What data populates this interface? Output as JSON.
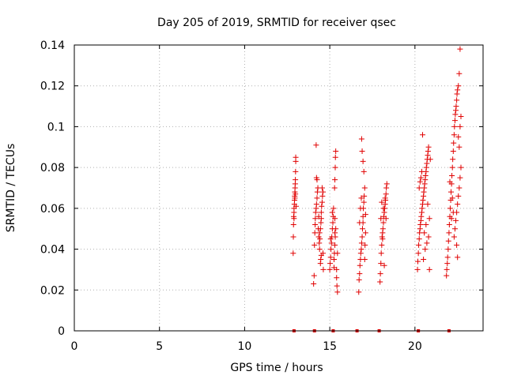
{
  "colors": {
    "data": "#e00000",
    "axis": "#000000",
    "grid": "#b0b0b0",
    "background": "#ffffff"
  },
  "chart_data": {
    "type": "scatter",
    "title": "Day 205 of 2019, SRMTID for receiver qsec",
    "xlabel": "GPS time / hours",
    "ylabel": "SRMTID / TECUs",
    "xlim": [
      0,
      24
    ],
    "ylim": [
      0,
      0.14
    ],
    "xticks": [
      0,
      5,
      10,
      15,
      20
    ],
    "xtick_labels": [
      "0",
      "5",
      "10",
      "15",
      "20"
    ],
    "yticks": [
      0,
      0.02,
      0.04,
      0.06,
      0.08,
      0.1,
      0.12,
      0.14
    ],
    "ytick_labels": [
      "0",
      "0.02",
      "0.04",
      "0.06",
      "0.08",
      "0.1",
      "0.12",
      "0.14"
    ],
    "grid": true,
    "marker": "plus",
    "series": [
      {
        "name": "SRMTID",
        "points": [
          [
            12.85,
            0.038
          ],
          [
            12.86,
            0.046
          ],
          [
            12.87,
            0.052
          ],
          [
            12.88,
            0.056
          ],
          [
            12.9,
            0.058
          ],
          [
            12.9,
            0.06
          ],
          [
            12.92,
            0.062
          ],
          [
            12.93,
            0.064
          ],
          [
            12.94,
            0.066
          ],
          [
            12.95,
            0.068
          ],
          [
            12.96,
            0.07
          ],
          [
            12.97,
            0.072
          ],
          [
            12.98,
            0.074
          ],
          [
            12.99,
            0.078
          ],
          [
            13.0,
            0.083
          ],
          [
            13.0,
            0.085
          ],
          [
            12.95,
            0.065
          ],
          [
            13.02,
            0.061
          ],
          [
            12.98,
            0.067
          ],
          [
            12.9,
            0.055
          ],
          [
            14.05,
            0.023
          ],
          [
            14.08,
            0.027
          ],
          [
            14.1,
            0.042
          ],
          [
            14.12,
            0.048
          ],
          [
            14.14,
            0.052
          ],
          [
            14.15,
            0.055
          ],
          [
            14.17,
            0.058
          ],
          [
            14.2,
            0.06
          ],
          [
            14.22,
            0.062
          ],
          [
            14.25,
            0.065
          ],
          [
            14.27,
            0.068
          ],
          [
            14.3,
            0.07
          ],
          [
            14.25,
            0.074
          ],
          [
            14.22,
            0.075
          ],
          [
            14.2,
            0.091
          ],
          [
            14.32,
            0.05
          ],
          [
            14.35,
            0.046
          ],
          [
            14.38,
            0.043
          ],
          [
            14.4,
            0.04
          ],
          [
            14.42,
            0.045
          ],
          [
            14.45,
            0.05
          ],
          [
            14.48,
            0.053
          ],
          [
            14.5,
            0.055
          ],
          [
            14.5,
            0.058
          ],
          [
            14.52,
            0.061
          ],
          [
            14.55,
            0.063
          ],
          [
            14.57,
            0.066
          ],
          [
            14.6,
            0.068
          ],
          [
            14.55,
            0.07
          ],
          [
            14.5,
            0.037
          ],
          [
            14.47,
            0.035
          ],
          [
            14.45,
            0.033
          ],
          [
            14.6,
            0.038
          ],
          [
            14.62,
            0.03
          ],
          [
            14.4,
            0.048
          ],
          [
            14.35,
            0.056
          ],
          [
            15.0,
            0.03
          ],
          [
            15.02,
            0.033
          ],
          [
            15.05,
            0.036
          ],
          [
            15.07,
            0.04
          ],
          [
            15.1,
            0.043
          ],
          [
            15.12,
            0.046
          ],
          [
            15.15,
            0.05
          ],
          [
            15.18,
            0.053
          ],
          [
            15.2,
            0.056
          ],
          [
            15.15,
            0.058
          ],
          [
            15.25,
            0.035
          ],
          [
            15.27,
            0.038
          ],
          [
            15.3,
            0.042
          ],
          [
            15.32,
            0.046
          ],
          [
            15.35,
            0.05
          ],
          [
            15.3,
            0.055
          ],
          [
            15.28,
            0.07
          ],
          [
            15.3,
            0.074
          ],
          [
            15.32,
            0.08
          ],
          [
            15.33,
            0.085
          ],
          [
            15.35,
            0.088
          ],
          [
            15.25,
            0.031
          ],
          [
            15.4,
            0.026
          ],
          [
            15.42,
            0.022
          ],
          [
            15.45,
            0.019
          ],
          [
            15.4,
            0.03
          ],
          [
            15.45,
            0.038
          ],
          [
            15.22,
            0.06
          ],
          [
            15.05,
            0.045
          ],
          [
            15.3,
            0.048
          ],
          [
            16.7,
            0.019
          ],
          [
            16.72,
            0.025
          ],
          [
            16.75,
            0.028
          ],
          [
            16.77,
            0.032
          ],
          [
            16.8,
            0.035
          ],
          [
            16.82,
            0.038
          ],
          [
            16.85,
            0.04
          ],
          [
            16.87,
            0.043
          ],
          [
            16.9,
            0.046
          ],
          [
            16.92,
            0.05
          ],
          [
            16.95,
            0.053
          ],
          [
            16.95,
            0.056
          ],
          [
            16.97,
            0.06
          ],
          [
            17.0,
            0.063
          ],
          [
            17.02,
            0.066
          ],
          [
            17.05,
            0.07
          ],
          [
            17.0,
            0.078
          ],
          [
            16.95,
            0.083
          ],
          [
            16.9,
            0.088
          ],
          [
            16.87,
            0.094
          ],
          [
            17.05,
            0.035
          ],
          [
            17.07,
            0.042
          ],
          [
            17.1,
            0.048
          ],
          [
            16.8,
            0.06
          ],
          [
            16.85,
            0.065
          ],
          [
            17.1,
            0.057
          ],
          [
            16.75,
            0.053
          ],
          [
            17.95,
            0.024
          ],
          [
            17.97,
            0.028
          ],
          [
            18.0,
            0.033
          ],
          [
            18.02,
            0.038
          ],
          [
            18.05,
            0.042
          ],
          [
            18.07,
            0.046
          ],
          [
            18.1,
            0.048
          ],
          [
            18.12,
            0.05
          ],
          [
            18.15,
            0.053
          ],
          [
            18.17,
            0.056
          ],
          [
            18.2,
            0.058
          ],
          [
            18.22,
            0.06
          ],
          [
            18.25,
            0.062
          ],
          [
            18.27,
            0.064
          ],
          [
            18.3,
            0.067
          ],
          [
            18.32,
            0.07
          ],
          [
            18.35,
            0.072
          ],
          [
            18.1,
            0.045
          ],
          [
            18.15,
            0.06
          ],
          [
            18.2,
            0.032
          ],
          [
            18.25,
            0.065
          ],
          [
            18.3,
            0.055
          ],
          [
            18.05,
            0.063
          ],
          [
            18.0,
            0.055
          ],
          [
            20.15,
            0.03
          ],
          [
            20.17,
            0.034
          ],
          [
            20.2,
            0.038
          ],
          [
            20.22,
            0.042
          ],
          [
            20.25,
            0.045
          ],
          [
            20.27,
            0.048
          ],
          [
            20.3,
            0.05
          ],
          [
            20.32,
            0.052
          ],
          [
            20.35,
            0.054
          ],
          [
            20.37,
            0.056
          ],
          [
            20.4,
            0.058
          ],
          [
            20.42,
            0.06
          ],
          [
            20.45,
            0.062
          ],
          [
            20.47,
            0.064
          ],
          [
            20.5,
            0.066
          ],
          [
            20.52,
            0.068
          ],
          [
            20.55,
            0.07
          ],
          [
            20.57,
            0.072
          ],
          [
            20.6,
            0.074
          ],
          [
            20.62,
            0.076
          ],
          [
            20.65,
            0.078
          ],
          [
            20.67,
            0.08
          ],
          [
            20.7,
            0.082
          ],
          [
            20.72,
            0.084
          ],
          [
            20.75,
            0.086
          ],
          [
            20.77,
            0.088
          ],
          [
            20.8,
            0.09
          ],
          [
            20.45,
            0.096
          ],
          [
            20.4,
            0.078
          ],
          [
            20.35,
            0.075
          ],
          [
            20.3,
            0.073
          ],
          [
            20.25,
            0.07
          ],
          [
            20.5,
            0.035
          ],
          [
            20.6,
            0.04
          ],
          [
            20.7,
            0.043
          ],
          [
            20.8,
            0.046
          ],
          [
            20.85,
            0.03
          ],
          [
            20.9,
            0.084
          ],
          [
            20.85,
            0.055
          ],
          [
            20.75,
            0.062
          ],
          [
            20.55,
            0.048
          ],
          [
            20.65,
            0.052
          ],
          [
            21.85,
            0.027
          ],
          [
            21.87,
            0.03
          ],
          [
            21.9,
            0.033
          ],
          [
            21.92,
            0.036
          ],
          [
            21.95,
            0.04
          ],
          [
            21.97,
            0.044
          ],
          [
            22.0,
            0.048
          ],
          [
            22.02,
            0.052
          ],
          [
            22.05,
            0.056
          ],
          [
            22.07,
            0.06
          ],
          [
            22.1,
            0.064
          ],
          [
            22.12,
            0.068
          ],
          [
            22.15,
            0.072
          ],
          [
            22.17,
            0.076
          ],
          [
            22.2,
            0.08
          ],
          [
            22.22,
            0.084
          ],
          [
            22.25,
            0.088
          ],
          [
            22.27,
            0.092
          ],
          [
            22.3,
            0.096
          ],
          [
            22.32,
            0.1
          ],
          [
            22.35,
            0.103
          ],
          [
            22.37,
            0.106
          ],
          [
            22.4,
            0.108
          ],
          [
            22.42,
            0.11
          ],
          [
            22.45,
            0.113
          ],
          [
            22.47,
            0.116
          ],
          [
            22.5,
            0.118
          ],
          [
            22.55,
            0.12
          ],
          [
            22.6,
            0.126
          ],
          [
            22.65,
            0.138
          ],
          [
            22.3,
            0.046
          ],
          [
            22.35,
            0.05
          ],
          [
            22.4,
            0.054
          ],
          [
            22.45,
            0.058
          ],
          [
            22.5,
            0.062
          ],
          [
            22.55,
            0.066
          ],
          [
            22.6,
            0.07
          ],
          [
            22.65,
            0.075
          ],
          [
            22.7,
            0.08
          ],
          [
            22.5,
            0.036
          ],
          [
            22.45,
            0.042
          ],
          [
            22.6,
            0.09
          ],
          [
            22.55,
            0.095
          ],
          [
            22.65,
            0.1
          ],
          [
            22.7,
            0.105
          ],
          [
            22.15,
            0.055
          ],
          [
            22.2,
            0.065
          ],
          [
            22.25,
            0.058
          ],
          [
            22.05,
            0.073
          ]
        ]
      }
    ],
    "baseline_markers_x": [
      12.9,
      14.1,
      15.2,
      16.6,
      17.9,
      20.2,
      22.0
    ]
  }
}
